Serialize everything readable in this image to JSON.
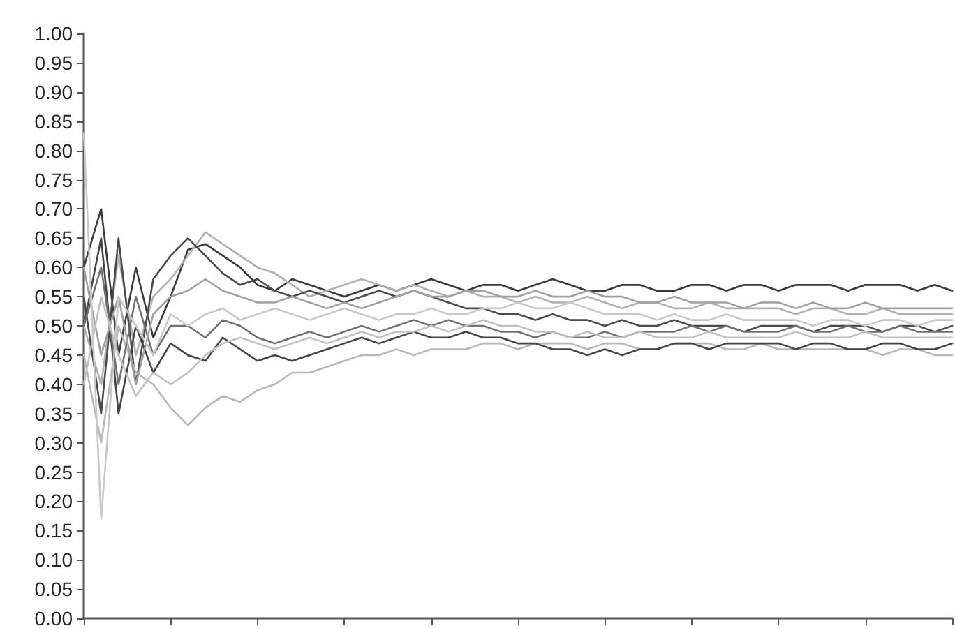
{
  "chart_data": {
    "type": "line",
    "categories": [
      null,
      null,
      null,
      null,
      null,
      null,
      null,
      null,
      null,
      null,
      null,
      null,
      null,
      null,
      null,
      null,
      null,
      null,
      null,
      null,
      null,
      null,
      null,
      null,
      null,
      null,
      null,
      null,
      null,
      null,
      null,
      null,
      null,
      null,
      null,
      null,
      null,
      null,
      null,
      null,
      null,
      null,
      null,
      null,
      null,
      null,
      null,
      null,
      null,
      null,
      null
    ],
    "series": [
      {
        "color": "#3a3a3a",
        "values": [
          0.6,
          0.7,
          0.45,
          0.6,
          0.48,
          0.55,
          0.63,
          0.64,
          0.62,
          0.6,
          0.57,
          0.56,
          0.58,
          0.57,
          0.56,
          0.55,
          0.56,
          0.57,
          0.56,
          0.57,
          0.58,
          0.57,
          0.56,
          0.57,
          0.57,
          0.56,
          0.57,
          0.58,
          0.57,
          0.56,
          0.56,
          0.57,
          0.57,
          0.56,
          0.56,
          0.57,
          0.57,
          0.56,
          0.57,
          0.57,
          0.56,
          0.57,
          0.57,
          0.57,
          0.56,
          0.57,
          0.57,
          0.57,
          0.56,
          0.57,
          0.56
        ]
      },
      {
        "color": "#b0b0b0",
        "values": [
          0.5,
          0.4,
          0.62,
          0.45,
          0.55,
          0.58,
          0.62,
          0.66,
          0.64,
          0.62,
          0.6,
          0.59,
          0.57,
          0.55,
          0.56,
          0.57,
          0.58,
          0.57,
          0.56,
          0.57,
          0.56,
          0.55,
          0.56,
          0.55,
          0.55,
          0.54,
          0.55,
          0.54,
          0.54,
          0.55,
          0.54,
          0.53,
          0.54,
          0.54,
          0.53,
          0.53,
          0.54,
          0.53,
          0.53,
          0.53,
          0.53,
          0.52,
          0.53,
          0.53,
          0.52,
          0.52,
          0.53,
          0.52,
          0.52,
          0.52,
          0.52
        ]
      },
      {
        "color": "#4a4a4a",
        "values": [
          0.55,
          0.35,
          0.65,
          0.4,
          0.58,
          0.62,
          0.65,
          0.62,
          0.59,
          0.57,
          0.58,
          0.56,
          0.55,
          0.56,
          0.55,
          0.54,
          0.55,
          0.56,
          0.55,
          0.56,
          0.55,
          0.54,
          0.53,
          0.53,
          0.52,
          0.52,
          0.51,
          0.52,
          0.51,
          0.51,
          0.5,
          0.51,
          0.5,
          0.5,
          0.51,
          0.5,
          0.5,
          0.5,
          0.49,
          0.5,
          0.5,
          0.5,
          0.49,
          0.5,
          0.5,
          0.5,
          0.49,
          0.5,
          0.5,
          0.49,
          0.5
        ]
      },
      {
        "color": "#b8b8b8",
        "values": [
          0.45,
          0.3,
          0.5,
          0.42,
          0.4,
          0.36,
          0.33,
          0.36,
          0.38,
          0.37,
          0.39,
          0.4,
          0.42,
          0.42,
          0.43,
          0.44,
          0.45,
          0.45,
          0.46,
          0.45,
          0.46,
          0.46,
          0.46,
          0.47,
          0.47,
          0.46,
          0.47,
          0.47,
          0.47,
          0.46,
          0.47,
          0.47,
          0.46,
          0.46,
          0.47,
          0.47,
          0.47,
          0.46,
          0.46,
          0.47,
          0.46,
          0.46,
          0.46,
          0.46,
          0.46,
          0.46,
          0.45,
          0.46,
          0.46,
          0.45,
          0.45
        ]
      },
      {
        "color": "#444444",
        "values": [
          0.5,
          0.65,
          0.35,
          0.5,
          0.42,
          0.47,
          0.45,
          0.44,
          0.48,
          0.46,
          0.44,
          0.45,
          0.44,
          0.45,
          0.46,
          0.47,
          0.48,
          0.47,
          0.48,
          0.49,
          0.48,
          0.48,
          0.49,
          0.48,
          0.48,
          0.47,
          0.47,
          0.46,
          0.46,
          0.45,
          0.46,
          0.45,
          0.46,
          0.46,
          0.47,
          0.47,
          0.46,
          0.47,
          0.47,
          0.47,
          0.47,
          0.46,
          0.47,
          0.47,
          0.46,
          0.46,
          0.47,
          0.47,
          0.46,
          0.46,
          0.47
        ]
      },
      {
        "color": "#707070",
        "values": [
          0.5,
          0.6,
          0.4,
          0.55,
          0.45,
          0.5,
          0.5,
          0.48,
          0.51,
          0.5,
          0.48,
          0.47,
          0.48,
          0.49,
          0.48,
          0.49,
          0.5,
          0.49,
          0.5,
          0.51,
          0.5,
          0.51,
          0.5,
          0.5,
          0.49,
          0.49,
          0.48,
          0.49,
          0.48,
          0.48,
          0.49,
          0.48,
          0.49,
          0.49,
          0.49,
          0.5,
          0.49,
          0.5,
          0.49,
          0.49,
          0.49,
          0.5,
          0.49,
          0.49,
          0.5,
          0.49,
          0.49,
          0.5,
          0.49,
          0.49,
          0.49
        ]
      },
      {
        "color": "#a0a0a0",
        "values": [
          0.6,
          0.45,
          0.55,
          0.4,
          0.52,
          0.55,
          0.56,
          0.58,
          0.56,
          0.55,
          0.54,
          0.54,
          0.55,
          0.54,
          0.53,
          0.54,
          0.53,
          0.54,
          0.55,
          0.56,
          0.55,
          0.55,
          0.56,
          0.56,
          0.55,
          0.55,
          0.56,
          0.55,
          0.55,
          0.56,
          0.55,
          0.55,
          0.54,
          0.54,
          0.55,
          0.54,
          0.54,
          0.54,
          0.53,
          0.54,
          0.54,
          0.53,
          0.54,
          0.53,
          0.53,
          0.54,
          0.53,
          0.53,
          0.53,
          0.53,
          0.53
        ]
      },
      {
        "color": "#c0c0c0",
        "values": [
          0.4,
          0.55,
          0.45,
          0.38,
          0.42,
          0.4,
          0.42,
          0.45,
          0.47,
          0.48,
          0.47,
          0.46,
          0.47,
          0.48,
          0.47,
          0.48,
          0.49,
          0.48,
          0.49,
          0.49,
          0.5,
          0.49,
          0.5,
          0.51,
          0.5,
          0.5,
          0.49,
          0.49,
          0.48,
          0.49,
          0.48,
          0.48,
          0.49,
          0.48,
          0.48,
          0.48,
          0.49,
          0.48,
          0.48,
          0.48,
          0.48,
          0.49,
          0.48,
          0.48,
          0.48,
          0.49,
          0.48,
          0.48,
          0.48,
          0.48,
          0.48
        ]
      },
      {
        "color": "#c8c8c8",
        "values": [
          0.83,
          0.17,
          0.55,
          0.5,
          0.45,
          0.52,
          0.5,
          0.52,
          0.53,
          0.51,
          0.52,
          0.53,
          0.52,
          0.51,
          0.52,
          0.53,
          0.52,
          0.51,
          0.52,
          0.52,
          0.53,
          0.52,
          0.52,
          0.53,
          0.53,
          0.54,
          0.53,
          0.53,
          0.54,
          0.53,
          0.52,
          0.52,
          0.52,
          0.51,
          0.52,
          0.51,
          0.51,
          0.52,
          0.51,
          0.51,
          0.51,
          0.51,
          0.5,
          0.51,
          0.51,
          0.5,
          0.51,
          0.51,
          0.5,
          0.51,
          0.51
        ]
      }
    ],
    "ylim": [
      0,
      1
    ],
    "yticks": [
      {
        "value": 0,
        "label": "0.00"
      },
      {
        "value": 0.05,
        "label": "0.05"
      },
      {
        "value": 0.1,
        "label": "0.10"
      },
      {
        "value": 0.15,
        "label": "0.15"
      },
      {
        "value": 0.2,
        "label": "0.20"
      },
      {
        "value": 0.25,
        "label": "0.25"
      },
      {
        "value": 0.3,
        "label": "0.30"
      },
      {
        "value": 0.35,
        "label": "0.35"
      },
      {
        "value": 0.4,
        "label": "0.40"
      },
      {
        "value": 0.45,
        "label": "0.45"
      },
      {
        "value": 0.5,
        "label": "0.50"
      },
      {
        "value": 0.55,
        "label": "0.55"
      },
      {
        "value": 0.6,
        "label": "0.60"
      },
      {
        "value": 0.65,
        "label": "0.65"
      },
      {
        "value": 0.7,
        "label": "0.70"
      },
      {
        "value": 0.75,
        "label": "0.75"
      },
      {
        "value": 0.8,
        "label": "0.80"
      },
      {
        "value": 0.85,
        "label": "0.85"
      },
      {
        "value": 0.9,
        "label": "0.90"
      },
      {
        "value": 0.95,
        "label": "0.95"
      },
      {
        "value": 1,
        "label": "1.00"
      }
    ],
    "tick_labels": "y",
    "grid": false,
    "marker": "none",
    "line_style": "solid"
  }
}
